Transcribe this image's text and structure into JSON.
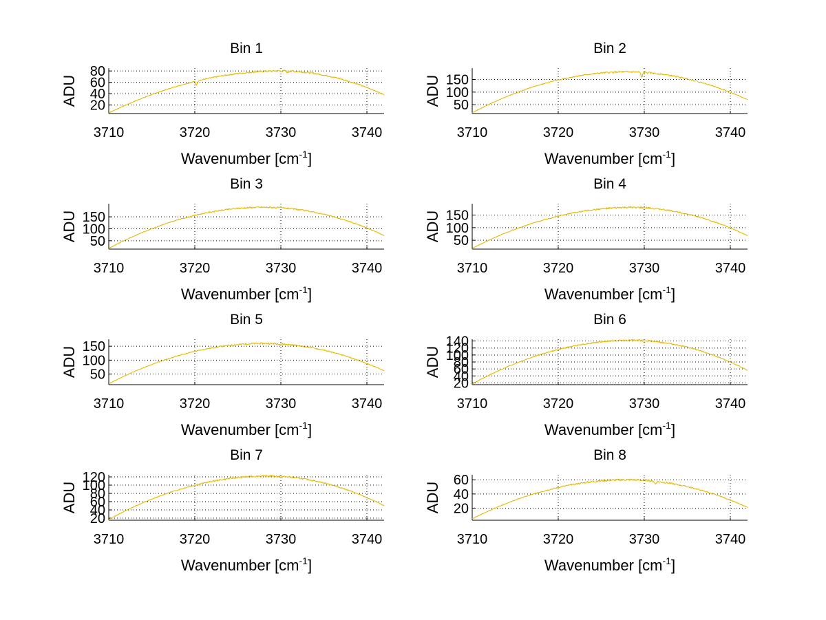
{
  "chart_data": [
    {
      "type": "line",
      "title": "Bin 1",
      "xlabel_base": "Wavenumber [cm",
      "xlabel_sup": "-1",
      "xlabel_close": "]",
      "ylabel": "ADU",
      "xlim": [
        3710,
        3742
      ],
      "ylim": [
        5,
        85
      ],
      "xticks": [
        3710,
        3720,
        3730,
        3740
      ],
      "yticks": [
        20,
        40,
        60,
        80
      ],
      "grid": true,
      "color": "#e6b800",
      "peak_x": 3730,
      "peak_y": 80,
      "y_left": 6,
      "y_right": 38,
      "dips": [
        {
          "x": 3720.2,
          "depth": 7
        },
        {
          "x": 3730.8,
          "depth": 3
        }
      ],
      "noise": 1.2
    },
    {
      "type": "line",
      "title": "Bin 2",
      "xlabel_base": "Wavenumber [cm",
      "xlabel_sup": "-1",
      "xlabel_close": "]",
      "ylabel": "ADU",
      "xlim": [
        3710,
        3742
      ],
      "ylim": [
        15,
        195
      ],
      "xticks": [
        3710,
        3720,
        3730,
        3740
      ],
      "yticks": [
        50,
        100,
        150
      ],
      "grid": true,
      "color": "#e6b800",
      "peak_x": 3728,
      "peak_y": 180,
      "y_left": 18,
      "y_right": 70,
      "dips": [
        {
          "x": 3729.7,
          "depth": 22
        }
      ],
      "noise": 2.5
    },
    {
      "type": "line",
      "title": "Bin 3",
      "xlabel_base": "Wavenumber [cm",
      "xlabel_sup": "-1",
      "xlabel_close": "]",
      "ylabel": "ADU",
      "xlim": [
        3710,
        3742
      ],
      "ylim": [
        15,
        205
      ],
      "xticks": [
        3710,
        3720,
        3730,
        3740
      ],
      "yticks": [
        50,
        100,
        150
      ],
      "grid": true,
      "color": "#e6b800",
      "peak_x": 3728,
      "peak_y": 190,
      "y_left": 18,
      "y_right": 72,
      "dips": [],
      "noise": 2.5
    },
    {
      "type": "line",
      "title": "Bin 4",
      "xlabel_base": "Wavenumber [cm",
      "xlabel_sup": "-1",
      "xlabel_close": "]",
      "ylabel": "ADU",
      "xlim": [
        3710,
        3742
      ],
      "ylim": [
        15,
        195
      ],
      "xticks": [
        3710,
        3720,
        3730,
        3740
      ],
      "yticks": [
        50,
        100,
        150
      ],
      "grid": true,
      "color": "#e6b800",
      "peak_x": 3728.5,
      "peak_y": 180,
      "y_left": 18,
      "y_right": 68,
      "dips": [],
      "noise": 2.5
    },
    {
      "type": "line",
      "title": "Bin 5",
      "xlabel_base": "Wavenumber [cm",
      "xlabel_sup": "-1",
      "xlabel_close": "]",
      "ylabel": "ADU",
      "xlim": [
        3710,
        3742
      ],
      "ylim": [
        12,
        175
      ],
      "xticks": [
        3710,
        3720,
        3730,
        3740
      ],
      "yticks": [
        50,
        100,
        150
      ],
      "grid": true,
      "color": "#e6b800",
      "peak_x": 3728,
      "peak_y": 160,
      "y_left": 15,
      "y_right": 62,
      "dips": [],
      "noise": 2.2
    },
    {
      "type": "line",
      "title": "Bin 6",
      "xlabel_base": "Wavenumber [cm",
      "xlabel_sup": "-1",
      "xlabel_close": "]",
      "ylabel": "ADU",
      "xlim": [
        3710,
        3742
      ],
      "ylim": [
        15,
        145
      ],
      "xticks": [
        3710,
        3720,
        3730,
        3740
      ],
      "yticks": [
        20,
        40,
        60,
        80,
        100,
        120,
        140
      ],
      "grid": true,
      "color": "#e6b800",
      "peak_x": 3728.5,
      "peak_y": 142,
      "y_left": 17,
      "y_right": 56,
      "dips": [],
      "noise": 1.8
    },
    {
      "type": "line",
      "title": "Bin 7",
      "xlabel_base": "Wavenumber [cm",
      "xlabel_sup": "-1",
      "xlabel_close": "]",
      "ylabel": "ADU",
      "xlim": [
        3710,
        3742
      ],
      "ylim": [
        15,
        125
      ],
      "xticks": [
        3710,
        3720,
        3730,
        3740
      ],
      "yticks": [
        20,
        40,
        60,
        80,
        100,
        120
      ],
      "grid": true,
      "color": "#e6b800",
      "peak_x": 3728.5,
      "peak_y": 122,
      "y_left": 17,
      "y_right": 50,
      "dips": [],
      "noise": 1.6
    },
    {
      "type": "line",
      "title": "Bin 8",
      "xlabel_base": "Wavenumber [cm",
      "xlabel_sup": "-1",
      "xlabel_close": "]",
      "ylabel": "ADU",
      "xlim": [
        3710,
        3742
      ],
      "ylim": [
        3,
        67
      ],
      "xticks": [
        3710,
        3720,
        3730,
        3740
      ],
      "yticks": [
        20,
        40,
        60
      ],
      "grid": true,
      "color": "#e6b800",
      "peak_x": 3728,
      "peak_y": 60,
      "y_left": 5,
      "y_right": 21,
      "dips": [
        {
          "x": 3731.3,
          "depth": 4
        }
      ],
      "noise": 1.0
    }
  ]
}
